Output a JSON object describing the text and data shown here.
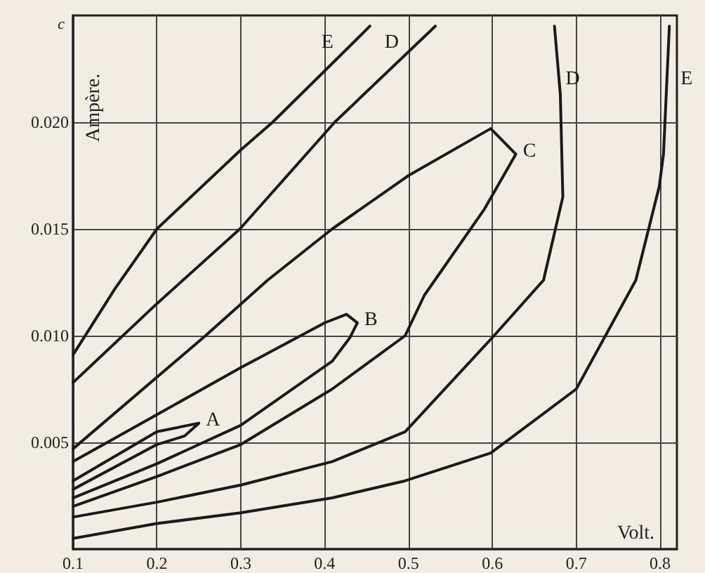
{
  "chart_data": {
    "type": "line",
    "xlabel": "Volt.",
    "ylabel": "Ampère.",
    "xlim": [
      0.1,
      0.82
    ],
    "ylim": [
      0,
      0.025
    ],
    "xticks": [
      0.1,
      0.2,
      0.3,
      0.4,
      0.5,
      0.6,
      0.7,
      0.8
    ],
    "yticks": [
      0.005,
      {
        "value": 0.01,
        "label": "0.010"
      },
      0.015,
      {
        "value": 0.02,
        "label": "0.020"
      }
    ],
    "grid": true,
    "marker": "none",
    "line_style": "solid",
    "series": [
      {
        "name": "A",
        "color": "#1a1a1a",
        "x": [
          0.1,
          0.2,
          0.25,
          0.233,
          0.2,
          0.1
        ],
        "values": [
          0.0032,
          0.0055,
          0.0059,
          0.0053,
          0.0049,
          0.0028
        ]
      },
      {
        "name": "B",
        "color": "#1a1a1a",
        "x": [
          0.1,
          0.2,
          0.3,
          0.4,
          0.426,
          0.439,
          0.43,
          0.409,
          0.3,
          0.2,
          0.1
        ],
        "values": [
          0.0041,
          0.0063,
          0.0085,
          0.0106,
          0.011,
          0.0106,
          0.0099,
          0.0088,
          0.0058,
          0.004,
          0.0024
        ]
      },
      {
        "name": "C",
        "color": "#1a1a1a",
        "x": [
          0.1,
          0.258,
          0.332,
          0.409,
          0.5,
          0.598,
          0.628,
          0.59,
          0.519,
          0.496,
          0.409,
          0.3,
          0.2,
          0.1
        ],
        "values": [
          0.0047,
          0.01,
          0.0126,
          0.015,
          0.0175,
          0.0197,
          0.0185,
          0.0159,
          0.0119,
          0.01,
          0.0075,
          0.0049,
          0.0034,
          0.002
        ]
      },
      {
        "name": "D",
        "color": "#1a1a1a",
        "x": [
          0.1,
          0.2,
          0.299,
          0.412,
          0.532,
          0.6,
          0.674,
          0.681,
          0.684,
          0.661,
          0.602,
          0.496,
          0.409,
          0.3,
          0.2,
          0.1
        ],
        "values": [
          0.0078,
          0.0115,
          0.015,
          0.02,
          0.0245,
          null,
          0.0245,
          0.0213,
          0.0165,
          0.0126,
          0.01,
          0.0055,
          0.0041,
          0.003,
          0.0022,
          0.0015
        ]
      },
      {
        "name": "E",
        "color": "#1a1a1a",
        "x": [
          0.1,
          0.15,
          0.2,
          0.3,
          0.338,
          0.4,
          0.454,
          0.6,
          0.811,
          0.804,
          0.799,
          0.771,
          0.7,
          0.598,
          0.496,
          0.409,
          0.3,
          0.2,
          0.1
        ],
        "values": [
          0.0091,
          0.0122,
          0.015,
          0.0187,
          0.02,
          0.0224,
          0.0245,
          null,
          0.0245,
          0.0185,
          0.017,
          0.0126,
          0.0075,
          0.0045,
          0.0032,
          0.0024,
          0.0017,
          0.0012,
          0.0005
        ]
      }
    ],
    "annotations": [
      "c"
    ]
  }
}
